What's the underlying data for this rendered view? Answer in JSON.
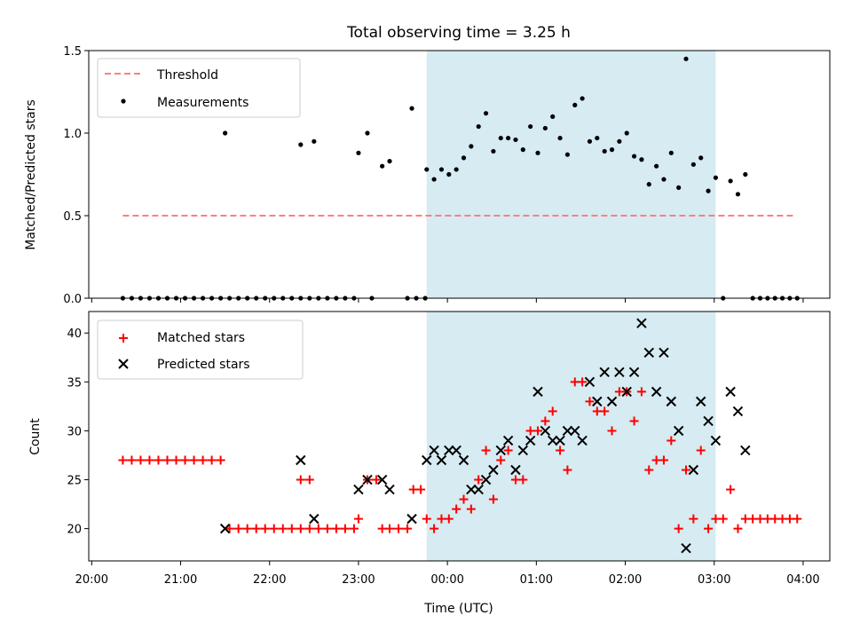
{
  "chart_data": [
    {
      "type": "scatter",
      "title": "Total observing time = 3.25 h",
      "xlabel": "",
      "ylabel": "Matched/Predicted stars",
      "xlim": [
        "19:58",
        "04:18"
      ],
      "ylim": [
        0,
        1.5
      ],
      "yticks": [
        "0.0",
        "0.5",
        "1.0",
        "1.5"
      ],
      "observing_window": [
        "23:46",
        "03:01"
      ],
      "threshold": {
        "name": "Threshold",
        "value": 0.5,
        "x_range": [
          "20:21",
          "03:54"
        ],
        "color": "#ff7f7f"
      },
      "legend": {
        "placement": "top-left",
        "entries": [
          "Threshold",
          "Measurements"
        ]
      },
      "series": [
        {
          "name": "Measurements",
          "color": "#000000",
          "points": [
            [
              "20:21",
              0
            ],
            [
              "20:27",
              0
            ],
            [
              "20:33",
              0
            ],
            [
              "20:39",
              0
            ],
            [
              "20:45",
              0
            ],
            [
              "20:51",
              0
            ],
            [
              "20:57",
              0
            ],
            [
              "21:03",
              0
            ],
            [
              "21:09",
              0
            ],
            [
              "21:15",
              0
            ],
            [
              "21:21",
              0
            ],
            [
              "21:27",
              0
            ],
            [
              "21:33",
              0
            ],
            [
              "21:39",
              0
            ],
            [
              "21:45",
              0
            ],
            [
              "21:51",
              0
            ],
            [
              "21:57",
              0
            ],
            [
              "22:03",
              0
            ],
            [
              "22:09",
              0
            ],
            [
              "22:15",
              0
            ],
            [
              "22:21",
              0
            ],
            [
              "22:27",
              0
            ],
            [
              "22:33",
              0
            ],
            [
              "22:39",
              0
            ],
            [
              "22:45",
              0
            ],
            [
              "22:51",
              0
            ],
            [
              "22:57",
              0
            ],
            [
              "23:09",
              0
            ],
            [
              "23:33",
              0
            ],
            [
              "23:39",
              0
            ],
            [
              "23:45",
              0
            ],
            [
              "21:30",
              1.0
            ],
            [
              "22:21",
              0.93
            ],
            [
              "22:30",
              0.95
            ],
            [
              "23:00",
              0.88
            ],
            [
              "23:06",
              1.0
            ],
            [
              "23:16",
              0.8
            ],
            [
              "23:21",
              0.83
            ],
            [
              "23:36",
              1.15
            ],
            [
              "23:46",
              0.78
            ],
            [
              "23:51",
              0.72
            ],
            [
              "23:56",
              0.78
            ],
            [
              "00:01",
              0.75
            ],
            [
              "00:06",
              0.78
            ],
            [
              "00:11",
              0.85
            ],
            [
              "00:16",
              0.92
            ],
            [
              "00:21",
              1.04
            ],
            [
              "00:26",
              1.12
            ],
            [
              "00:31",
              0.89
            ],
            [
              "00:36",
              0.97
            ],
            [
              "00:41",
              0.97
            ],
            [
              "00:46",
              0.96
            ],
            [
              "00:51",
              0.9
            ],
            [
              "00:56",
              1.04
            ],
            [
              "01:01",
              0.88
            ],
            [
              "01:06",
              1.03
            ],
            [
              "01:11",
              1.1
            ],
            [
              "01:16",
              0.97
            ],
            [
              "01:21",
              0.87
            ],
            [
              "01:26",
              1.17
            ],
            [
              "01:31",
              1.21
            ],
            [
              "01:36",
              0.95
            ],
            [
              "01:41",
              0.97
            ],
            [
              "01:46",
              0.89
            ],
            [
              "01:51",
              0.9
            ],
            [
              "01:56",
              0.95
            ],
            [
              "02:01",
              1.0
            ],
            [
              "02:06",
              0.86
            ],
            [
              "02:11",
              0.84
            ],
            [
              "02:16",
              0.69
            ],
            [
              "02:21",
              0.8
            ],
            [
              "02:26",
              0.72
            ],
            [
              "02:31",
              0.88
            ],
            [
              "02:36",
              0.67
            ],
            [
              "02:41",
              1.45
            ],
            [
              "02:46",
              0.81
            ],
            [
              "02:51",
              0.85
            ],
            [
              "02:56",
              0.65
            ],
            [
              "03:01",
              0.73
            ],
            [
              "03:06",
              0
            ],
            [
              "03:11",
              0.71
            ],
            [
              "03:16",
              0.63
            ],
            [
              "03:21",
              0.75
            ],
            [
              "03:26",
              0
            ],
            [
              "03:31",
              0
            ],
            [
              "03:36",
              0
            ],
            [
              "03:41",
              0
            ],
            [
              "03:46",
              0
            ],
            [
              "03:51",
              0
            ],
            [
              "03:56",
              0
            ]
          ]
        }
      ]
    },
    {
      "type": "scatter",
      "title": "",
      "xlabel": "Time (UTC)",
      "ylabel": "Count",
      "xlim": [
        "19:58",
        "04:18"
      ],
      "ylim": [
        16.7,
        42.2
      ],
      "yticks": [
        "20",
        "25",
        "30",
        "35",
        "40"
      ],
      "xticks": [
        "20:00",
        "21:00",
        "22:00",
        "23:00",
        "00:00",
        "01:00",
        "02:00",
        "03:00",
        "04:00"
      ],
      "observing_window": [
        "23:46",
        "03:01"
      ],
      "legend": {
        "placement": "top-left",
        "entries": [
          "Matched stars",
          "Predicted stars"
        ]
      },
      "series": [
        {
          "name": "Matched stars",
          "marker": "plus",
          "color": "#ff0000",
          "points": [
            [
              "20:21",
              27
            ],
            [
              "20:27",
              27
            ],
            [
              "20:33",
              27
            ],
            [
              "20:39",
              27
            ],
            [
              "20:45",
              27
            ],
            [
              "20:51",
              27
            ],
            [
              "20:57",
              27
            ],
            [
              "21:03",
              27
            ],
            [
              "21:09",
              27
            ],
            [
              "21:15",
              27
            ],
            [
              "21:21",
              27
            ],
            [
              "21:27",
              27
            ],
            [
              "21:33",
              20
            ],
            [
              "21:39",
              20
            ],
            [
              "21:45",
              20
            ],
            [
              "21:51",
              20
            ],
            [
              "21:57",
              20
            ],
            [
              "22:03",
              20
            ],
            [
              "22:09",
              20
            ],
            [
              "22:15",
              20
            ],
            [
              "22:21",
              20
            ],
            [
              "22:27",
              20
            ],
            [
              "22:21",
              25
            ],
            [
              "22:27",
              25
            ],
            [
              "22:33",
              20
            ],
            [
              "22:39",
              20
            ],
            [
              "22:45",
              20
            ],
            [
              "22:51",
              20
            ],
            [
              "22:57",
              20
            ],
            [
              "23:00",
              21
            ],
            [
              "23:06",
              25
            ],
            [
              "23:12",
              25
            ],
            [
              "23:16",
              20
            ],
            [
              "23:21",
              20
            ],
            [
              "23:27",
              20
            ],
            [
              "23:33",
              20
            ],
            [
              "23:37",
              24
            ],
            [
              "23:42",
              24
            ],
            [
              "23:46",
              21
            ],
            [
              "23:51",
              20
            ],
            [
              "23:56",
              21
            ],
            [
              "00:01",
              21
            ],
            [
              "00:06",
              22
            ],
            [
              "00:11",
              23
            ],
            [
              "00:16",
              22
            ],
            [
              "00:21",
              25
            ],
            [
              "00:26",
              28
            ],
            [
              "00:31",
              23
            ],
            [
              "00:36",
              27
            ],
            [
              "00:41",
              28
            ],
            [
              "00:46",
              25
            ],
            [
              "00:51",
              25
            ],
            [
              "00:56",
              30
            ],
            [
              "01:01",
              30
            ],
            [
              "01:06",
              31
            ],
            [
              "01:11",
              32
            ],
            [
              "01:16",
              28
            ],
            [
              "01:21",
              26
            ],
            [
              "01:26",
              35
            ],
            [
              "01:31",
              35
            ],
            [
              "01:36",
              33
            ],
            [
              "01:41",
              32
            ],
            [
              "01:46",
              32
            ],
            [
              "01:51",
              30
            ],
            [
              "01:56",
              34
            ],
            [
              "02:01",
              34
            ],
            [
              "02:06",
              31
            ],
            [
              "02:11",
              34
            ],
            [
              "02:16",
              26
            ],
            [
              "02:21",
              27
            ],
            [
              "02:26",
              27
            ],
            [
              "02:31",
              29
            ],
            [
              "02:36",
              20
            ],
            [
              "02:41",
              26
            ],
            [
              "02:46",
              21
            ],
            [
              "02:51",
              28
            ],
            [
              "02:56",
              20
            ],
            [
              "03:01",
              21
            ],
            [
              "03:06",
              21
            ],
            [
              "03:11",
              24
            ],
            [
              "03:16",
              20
            ],
            [
              "03:21",
              21
            ],
            [
              "03:26",
              21
            ],
            [
              "03:31",
              21
            ],
            [
              "03:36",
              21
            ],
            [
              "03:41",
              21
            ],
            [
              "03:46",
              21
            ],
            [
              "03:51",
              21
            ],
            [
              "03:56",
              21
            ]
          ]
        },
        {
          "name": "Predicted stars",
          "marker": "x",
          "color": "#000000",
          "points": [
            [
              "21:30",
              20
            ],
            [
              "22:21",
              27
            ],
            [
              "22:30",
              21
            ],
            [
              "23:00",
              24
            ],
            [
              "23:06",
              25
            ],
            [
              "23:16",
              25
            ],
            [
              "23:21",
              24
            ],
            [
              "23:36",
              21
            ],
            [
              "23:46",
              27
            ],
            [
              "23:51",
              28
            ],
            [
              "23:56",
              27
            ],
            [
              "00:01",
              28
            ],
            [
              "00:06",
              28
            ],
            [
              "00:11",
              27
            ],
            [
              "00:16",
              24
            ],
            [
              "00:21",
              24
            ],
            [
              "00:26",
              25
            ],
            [
              "00:31",
              26
            ],
            [
              "00:36",
              28
            ],
            [
              "00:41",
              29
            ],
            [
              "00:46",
              26
            ],
            [
              "00:51",
              28
            ],
            [
              "00:56",
              29
            ],
            [
              "01:01",
              34
            ],
            [
              "01:06",
              30
            ],
            [
              "01:11",
              29
            ],
            [
              "01:16",
              29
            ],
            [
              "01:21",
              30
            ],
            [
              "01:26",
              30
            ],
            [
              "01:31",
              29
            ],
            [
              "01:36",
              35
            ],
            [
              "01:41",
              33
            ],
            [
              "01:46",
              36
            ],
            [
              "01:51",
              33
            ],
            [
              "01:56",
              36
            ],
            [
              "02:01",
              34
            ],
            [
              "02:06",
              36
            ],
            [
              "02:11",
              41
            ],
            [
              "02:16",
              38
            ],
            [
              "02:21",
              34
            ],
            [
              "02:26",
              38
            ],
            [
              "02:31",
              33
            ],
            [
              "02:36",
              30
            ],
            [
              "02:41",
              18
            ],
            [
              "02:46",
              26
            ],
            [
              "02:51",
              33
            ],
            [
              "02:56",
              31
            ],
            [
              "03:01",
              29
            ],
            [
              "03:11",
              34
            ],
            [
              "03:16",
              32
            ],
            [
              "03:21",
              28
            ]
          ]
        }
      ]
    }
  ]
}
